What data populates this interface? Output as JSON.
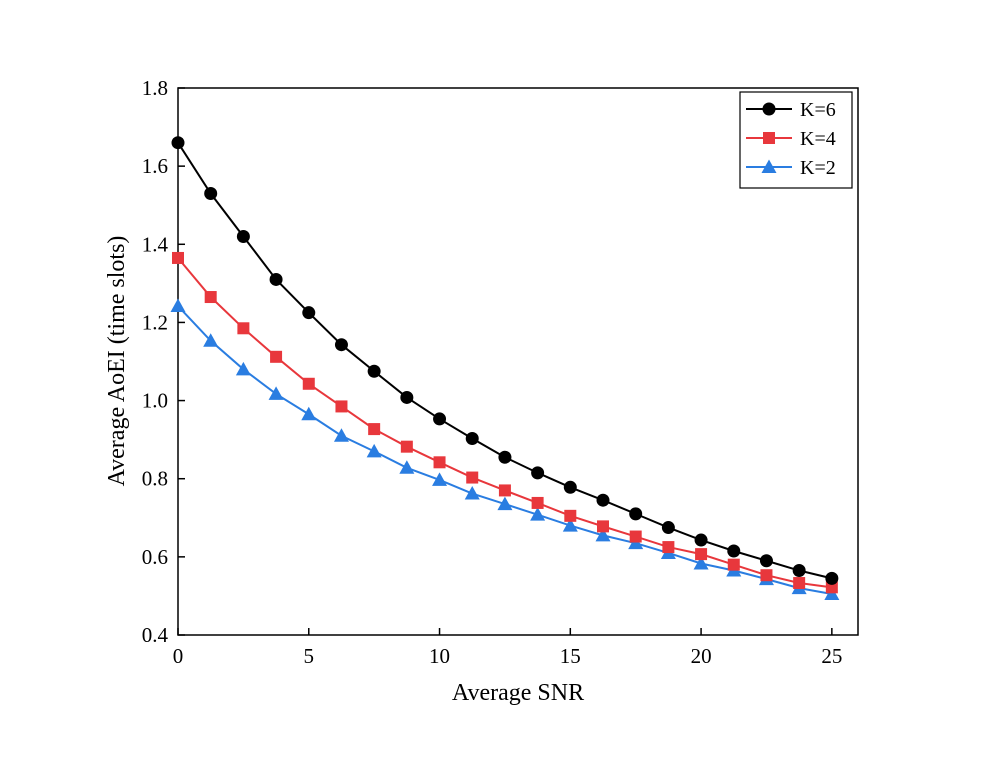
{
  "chart_data": {
    "type": "line",
    "xlabel": "Average SNR",
    "ylabel": "Average AoEI (time slots)",
    "xlim": [
      0,
      26
    ],
    "ylim": [
      0.4,
      1.8
    ],
    "xticks": [
      0,
      5,
      10,
      15,
      20,
      25
    ],
    "yticks": [
      0.4,
      0.6,
      0.8,
      1.0,
      1.2,
      1.4,
      1.6,
      1.8
    ],
    "xtick_labels": [
      "0",
      "5",
      "10",
      "15",
      "20",
      "25"
    ],
    "ytick_labels": [
      "0.4",
      "0.6",
      "0.8",
      "1.0",
      "1.2",
      "1.4",
      "1.6",
      "1.8"
    ],
    "grid": false,
    "legend_position": "top-right",
    "x": [
      0,
      1.25,
      2.5,
      3.75,
      5,
      6.25,
      7.5,
      8.75,
      10,
      11.25,
      12.5,
      13.75,
      15,
      16.25,
      17.5,
      18.75,
      20,
      21.25,
      22.5,
      23.75,
      25
    ],
    "series": [
      {
        "name": "K=6",
        "color": "#000000",
        "marker": "circle",
        "values": [
          1.66,
          1.53,
          1.42,
          1.31,
          1.225,
          1.143,
          1.075,
          1.008,
          0.953,
          0.903,
          0.855,
          0.815,
          0.778,
          0.745,
          0.71,
          0.675,
          0.643,
          0.615,
          0.59,
          0.565,
          0.545
        ]
      },
      {
        "name": "K=4",
        "color": "#e8373c",
        "marker": "square",
        "values": [
          1.365,
          1.265,
          1.185,
          1.112,
          1.043,
          0.985,
          0.927,
          0.882,
          0.842,
          0.803,
          0.77,
          0.738,
          0.705,
          0.678,
          0.652,
          0.625,
          0.607,
          0.58,
          0.553,
          0.533,
          0.522
        ]
      },
      {
        "name": "K=2",
        "color": "#2a7de1",
        "marker": "triangle",
        "values": [
          1.242,
          1.153,
          1.08,
          1.017,
          0.965,
          0.91,
          0.87,
          0.828,
          0.797,
          0.762,
          0.735,
          0.708,
          0.68,
          0.655,
          0.635,
          0.61,
          0.583,
          0.565,
          0.543,
          0.52,
          0.505
        ]
      }
    ]
  }
}
